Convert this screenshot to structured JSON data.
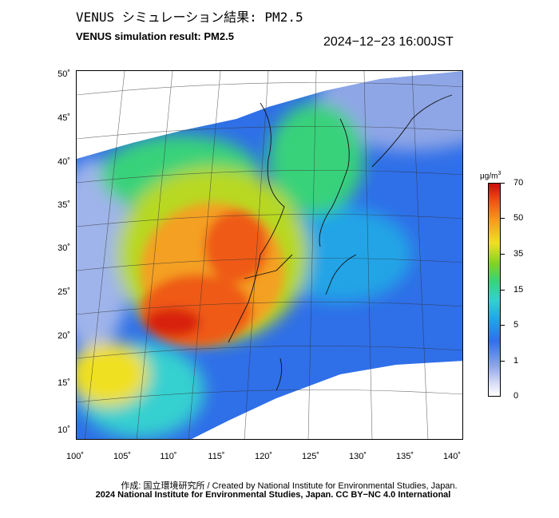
{
  "header": {
    "title_jp": "VENUS シミュレーション結果: PM2.5",
    "title_en": "VENUS simulation result: PM2.5",
    "timestamp": "2024−12−23 16:00JST"
  },
  "map": {
    "latitude_labels": [
      "50˚",
      "45˚",
      "40˚",
      "35˚",
      "30˚",
      "25˚",
      "20˚",
      "15˚",
      "10˚"
    ],
    "longitude_labels": [
      "100˚",
      "105˚",
      "110˚",
      "115˚",
      "120˚",
      "125˚",
      "130˚",
      "135˚",
      "140˚"
    ],
    "colors": {
      "very_high": "#cc0c0c",
      "high": "#ef5a18",
      "elevated": "#f4a020",
      "moderate": "#f0e020",
      "green": "#39d27a",
      "cyan": "#34d0d0",
      "blue": "#2f6fe8",
      "light_blue": "#8ea6e6",
      "background": "#ffffff"
    }
  },
  "colorbar": {
    "unit": "μg/m",
    "unit_exponent": "3",
    "ticks": [
      "70",
      "50",
      "35",
      "15",
      "5",
      "1",
      "0"
    ]
  },
  "footer": {
    "credit": "作成: 国立環境研究所 / Created by National Institute for Environmental Studies, Japan.",
    "copyright": "2024 National Institute for Environmental Studies, Japan. CC BY−NC 4.0 International"
  }
}
